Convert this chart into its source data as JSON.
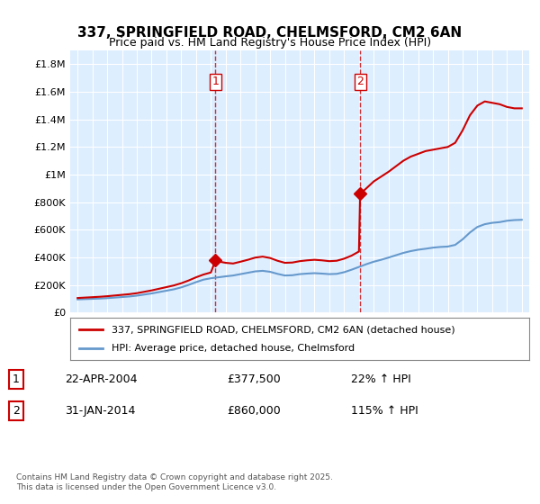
{
  "title_line1": "337, SPRINGFIELD ROAD, CHELMSFORD, CM2 6AN",
  "title_line2": "Price paid vs. HM Land Registry's House Price Index (HPI)",
  "background_color": "#ddeeff",
  "plot_bg_color": "#ddeeff",
  "ylabel_color": "#222222",
  "ylim": [
    0,
    1900000
  ],
  "yticks": [
    0,
    200000,
    400000,
    600000,
    800000,
    1000000,
    1200000,
    1400000,
    1600000,
    1800000
  ],
  "ytick_labels": [
    "£0",
    "£200K",
    "£400K",
    "£600K",
    "£800K",
    "£1M",
    "£1.2M",
    "£1.4M",
    "£1.6M",
    "£1.8M"
  ],
  "sale1_date": 2004.31,
  "sale1_price": 377500,
  "sale1_label": "1",
  "sale2_date": 2014.08,
  "sale2_price": 860000,
  "sale2_label": "2",
  "legend_entry1": "337, SPRINGFIELD ROAD, CHELMSFORD, CM2 6AN (detached house)",
  "legend_entry2": "HPI: Average price, detached house, Chelmsford",
  "table_row1": [
    "1",
    "22-APR-2004",
    "£377,500",
    "22% ↑ HPI"
  ],
  "table_row2": [
    "2",
    "31-JAN-2014",
    "£860,000",
    "115% ↑ HPI"
  ],
  "footer": "Contains HM Land Registry data © Crown copyright and database right 2025.\nThis data is licensed under the Open Government Licence v3.0.",
  "line_color_property": "#cc0000",
  "line_color_hpi": "#6699cc",
  "vline_color": "#cc0000",
  "grid_color": "#ffffff",
  "hpi_data": {
    "years": [
      1995,
      1995.5,
      1996,
      1996.5,
      1997,
      1997.5,
      1998,
      1998.5,
      1999,
      1999.5,
      2000,
      2000.5,
      2001,
      2001.5,
      2002,
      2002.5,
      2003,
      2003.5,
      2004,
      2004.5,
      2005,
      2005.5,
      2006,
      2006.5,
      2007,
      2007.5,
      2008,
      2008.5,
      2009,
      2009.5,
      2010,
      2010.5,
      2011,
      2011.5,
      2012,
      2012.5,
      2013,
      2013.5,
      2014,
      2014.5,
      2015,
      2015.5,
      2016,
      2016.5,
      2017,
      2017.5,
      2018,
      2018.5,
      2019,
      2019.5,
      2020,
      2020.5,
      2021,
      2021.5,
      2022,
      2022.5,
      2023,
      2023.5,
      2024,
      2024.5,
      2025
    ],
    "values": [
      95000,
      97000,
      99000,
      101000,
      104000,
      108000,
      112000,
      116000,
      122000,
      130000,
      138000,
      148000,
      158000,
      168000,
      182000,
      200000,
      220000,
      238000,
      248000,
      255000,
      262000,
      268000,
      278000,
      288000,
      298000,
      302000,
      295000,
      280000,
      268000,
      270000,
      278000,
      282000,
      285000,
      282000,
      278000,
      280000,
      292000,
      310000,
      330000,
      350000,
      368000,
      382000,
      398000,
      415000,
      432000,
      445000,
      455000,
      462000,
      470000,
      475000,
      478000,
      490000,
      530000,
      580000,
      620000,
      640000,
      650000,
      655000,
      665000,
      670000,
      672000
    ]
  },
  "property_data": {
    "years": [
      1995,
      1995.5,
      1996,
      1996.5,
      1997,
      1997.5,
      1998,
      1998.5,
      1999,
      1999.5,
      2000,
      2000.5,
      2001,
      2001.5,
      2002,
      2002.5,
      2003,
      2003.5,
      2004,
      2004.31,
      2004.5,
      2005,
      2005.5,
      2006,
      2006.5,
      2007,
      2007.5,
      2008,
      2008.5,
      2009,
      2009.5,
      2010,
      2010.5,
      2011,
      2011.5,
      2012,
      2012.5,
      2013,
      2013.5,
      2014,
      2014.08,
      2014.5,
      2015,
      2015.5,
      2016,
      2016.5,
      2017,
      2017.5,
      2018,
      2018.5,
      2019,
      2019.5,
      2020,
      2020.5,
      2021,
      2021.5,
      2022,
      2022.5,
      2023,
      2023.5,
      2024,
      2024.5,
      2025
    ],
    "values": [
      105000,
      108000,
      111000,
      114000,
      118000,
      123000,
      128000,
      133000,
      140000,
      150000,
      160000,
      172000,
      184000,
      196000,
      212000,
      232000,
      255000,
      275000,
      290000,
      377500,
      370000,
      360000,
      355000,
      368000,
      382000,
      398000,
      405000,
      395000,
      375000,
      360000,
      362000,
      372000,
      378000,
      382000,
      378000,
      372000,
      375000,
      390000,
      412000,
      442000,
      860000,
      900000,
      950000,
      985000,
      1020000,
      1060000,
      1100000,
      1130000,
      1150000,
      1170000,
      1180000,
      1190000,
      1200000,
      1230000,
      1320000,
      1430000,
      1500000,
      1530000,
      1520000,
      1510000,
      1490000,
      1480000,
      1480000
    ]
  }
}
